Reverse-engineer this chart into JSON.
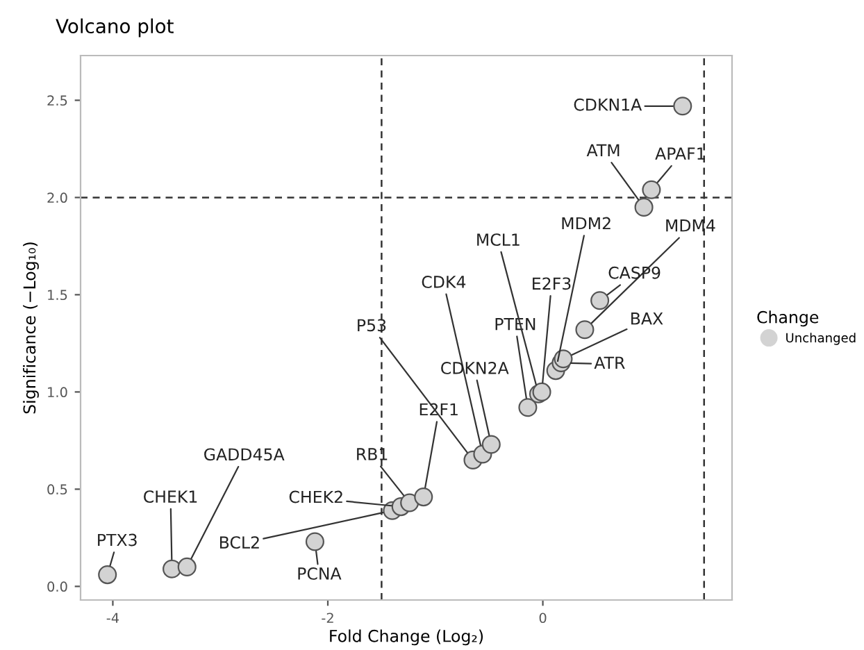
{
  "chart_data": {
    "type": "scatter",
    "title": "Volcano plot",
    "xlabel": "Fold Change (Log₂)",
    "ylabel": "Significance (−Log₁₀)",
    "legend_title": "Change",
    "legend": "right",
    "grid": false,
    "marker": "circle",
    "xlim": [
      -4.3,
      1.76
    ],
    "ylim": [
      -0.07,
      2.73
    ],
    "xticks": [
      -4,
      -2,
      0
    ],
    "yticks": [
      {
        "value": 0,
        "label": "0.0"
      },
      0.5,
      {
        "value": 1,
        "label": "1.0"
      },
      1.5,
      {
        "value": 2,
        "label": "2.0"
      },
      2.5
    ],
    "ref_lines": [
      {
        "axis": "x",
        "value": -1.5,
        "line_style": "dashed",
        "color": "#333333"
      },
      {
        "axis": "x",
        "value": 1.5,
        "line_style": "dashed",
        "color": "#333333"
      },
      {
        "axis": "y",
        "value": 2.0,
        "line_style": "dashed",
        "color": "#333333"
      }
    ],
    "series": [
      {
        "name": "Unchanged",
        "color": "#d3d3d3",
        "x": [
          -4.05,
          -3.45,
          -3.31,
          -2.12,
          -1.4,
          -1.32,
          -1.24,
          -1.11,
          -0.65,
          -0.56,
          -0.48,
          -0.14,
          -0.04,
          -0.01,
          0.12,
          0.17,
          0.19,
          0.39,
          0.53,
          0.94,
          1.01,
          1.3
        ],
        "values": [
          0.06,
          0.09,
          0.1,
          0.23,
          0.39,
          0.41,
          0.43,
          0.46,
          0.65,
          0.68,
          0.73,
          0.92,
          0.99,
          1.0,
          1.11,
          1.15,
          1.17,
          1.32,
          1.47,
          1.95,
          2.04,
          2.47
        ]
      }
    ],
    "annotations": [
      {
        "text": "PTX3",
        "x": -4.05,
        "y": 0.06
      },
      {
        "text": "CHEK1",
        "x": -3.45,
        "y": 0.09
      },
      {
        "text": "GADD45A",
        "x": -3.31,
        "y": 0.1
      },
      {
        "text": "PCNA",
        "x": -2.12,
        "y": 0.23
      },
      {
        "text": "BCL2",
        "x": -1.4,
        "y": 0.39
      },
      {
        "text": "CHEK2",
        "x": -1.32,
        "y": 0.41
      },
      {
        "text": "RB1",
        "x": -1.24,
        "y": 0.43
      },
      {
        "text": "E2F1",
        "x": -1.11,
        "y": 0.46
      },
      {
        "text": "P53",
        "x": -0.65,
        "y": 0.65
      },
      {
        "text": "CDK4",
        "x": -0.56,
        "y": 0.68
      },
      {
        "text": "CDKN2A",
        "x": -0.48,
        "y": 0.73
      },
      {
        "text": "PTEN",
        "x": -0.14,
        "y": 0.92
      },
      {
        "text": "MCL1",
        "x": -0.04,
        "y": 0.99
      },
      {
        "text": "E2F3",
        "x": -0.01,
        "y": 1.0
      },
      {
        "text": "MDM2",
        "x": 0.12,
        "y": 1.11
      },
      {
        "text": "ATR",
        "x": 0.17,
        "y": 1.15
      },
      {
        "text": "BAX",
        "x": 0.19,
        "y": 1.17
      },
      {
        "text": "MDM4",
        "x": 0.39,
        "y": 1.32
      },
      {
        "text": "CASP9",
        "x": 0.53,
        "y": 1.47
      },
      {
        "text": "ATM",
        "x": 0.94,
        "y": 1.95
      },
      {
        "text": "APAF1",
        "x": 1.01,
        "y": 2.04
      },
      {
        "text": "CDKN1A",
        "x": 1.3,
        "y": 2.47
      }
    ]
  }
}
